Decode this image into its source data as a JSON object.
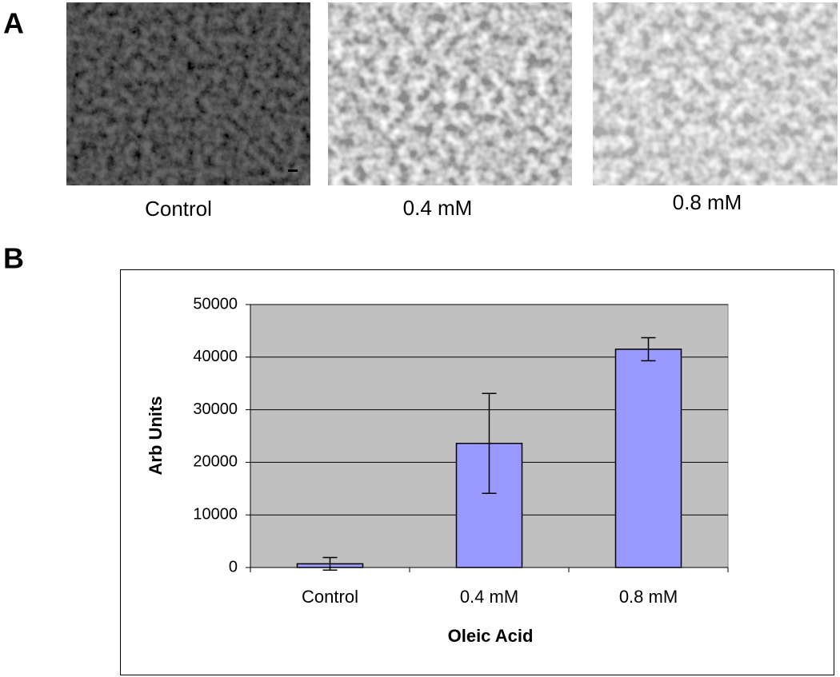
{
  "panel_labels": [
    "A",
    "B"
  ],
  "image_captions": [
    "Control",
    "0.4 mM",
    "0.8 mM"
  ],
  "chart_data": {
    "type": "bar",
    "x_label": "Oleic Acid",
    "y_label": "Arb Units",
    "categories": [
      "Control",
      "0.4 mM",
      "0.8 mM"
    ],
    "values": [
      700,
      23600,
      41500
    ],
    "errors": [
      1200,
      9500,
      2200
    ],
    "color": "#9999ff",
    "ylim": [
      0,
      50000
    ],
    "yticks": [
      0,
      10000,
      20000,
      30000,
      40000,
      50000
    ],
    "grid": true
  }
}
